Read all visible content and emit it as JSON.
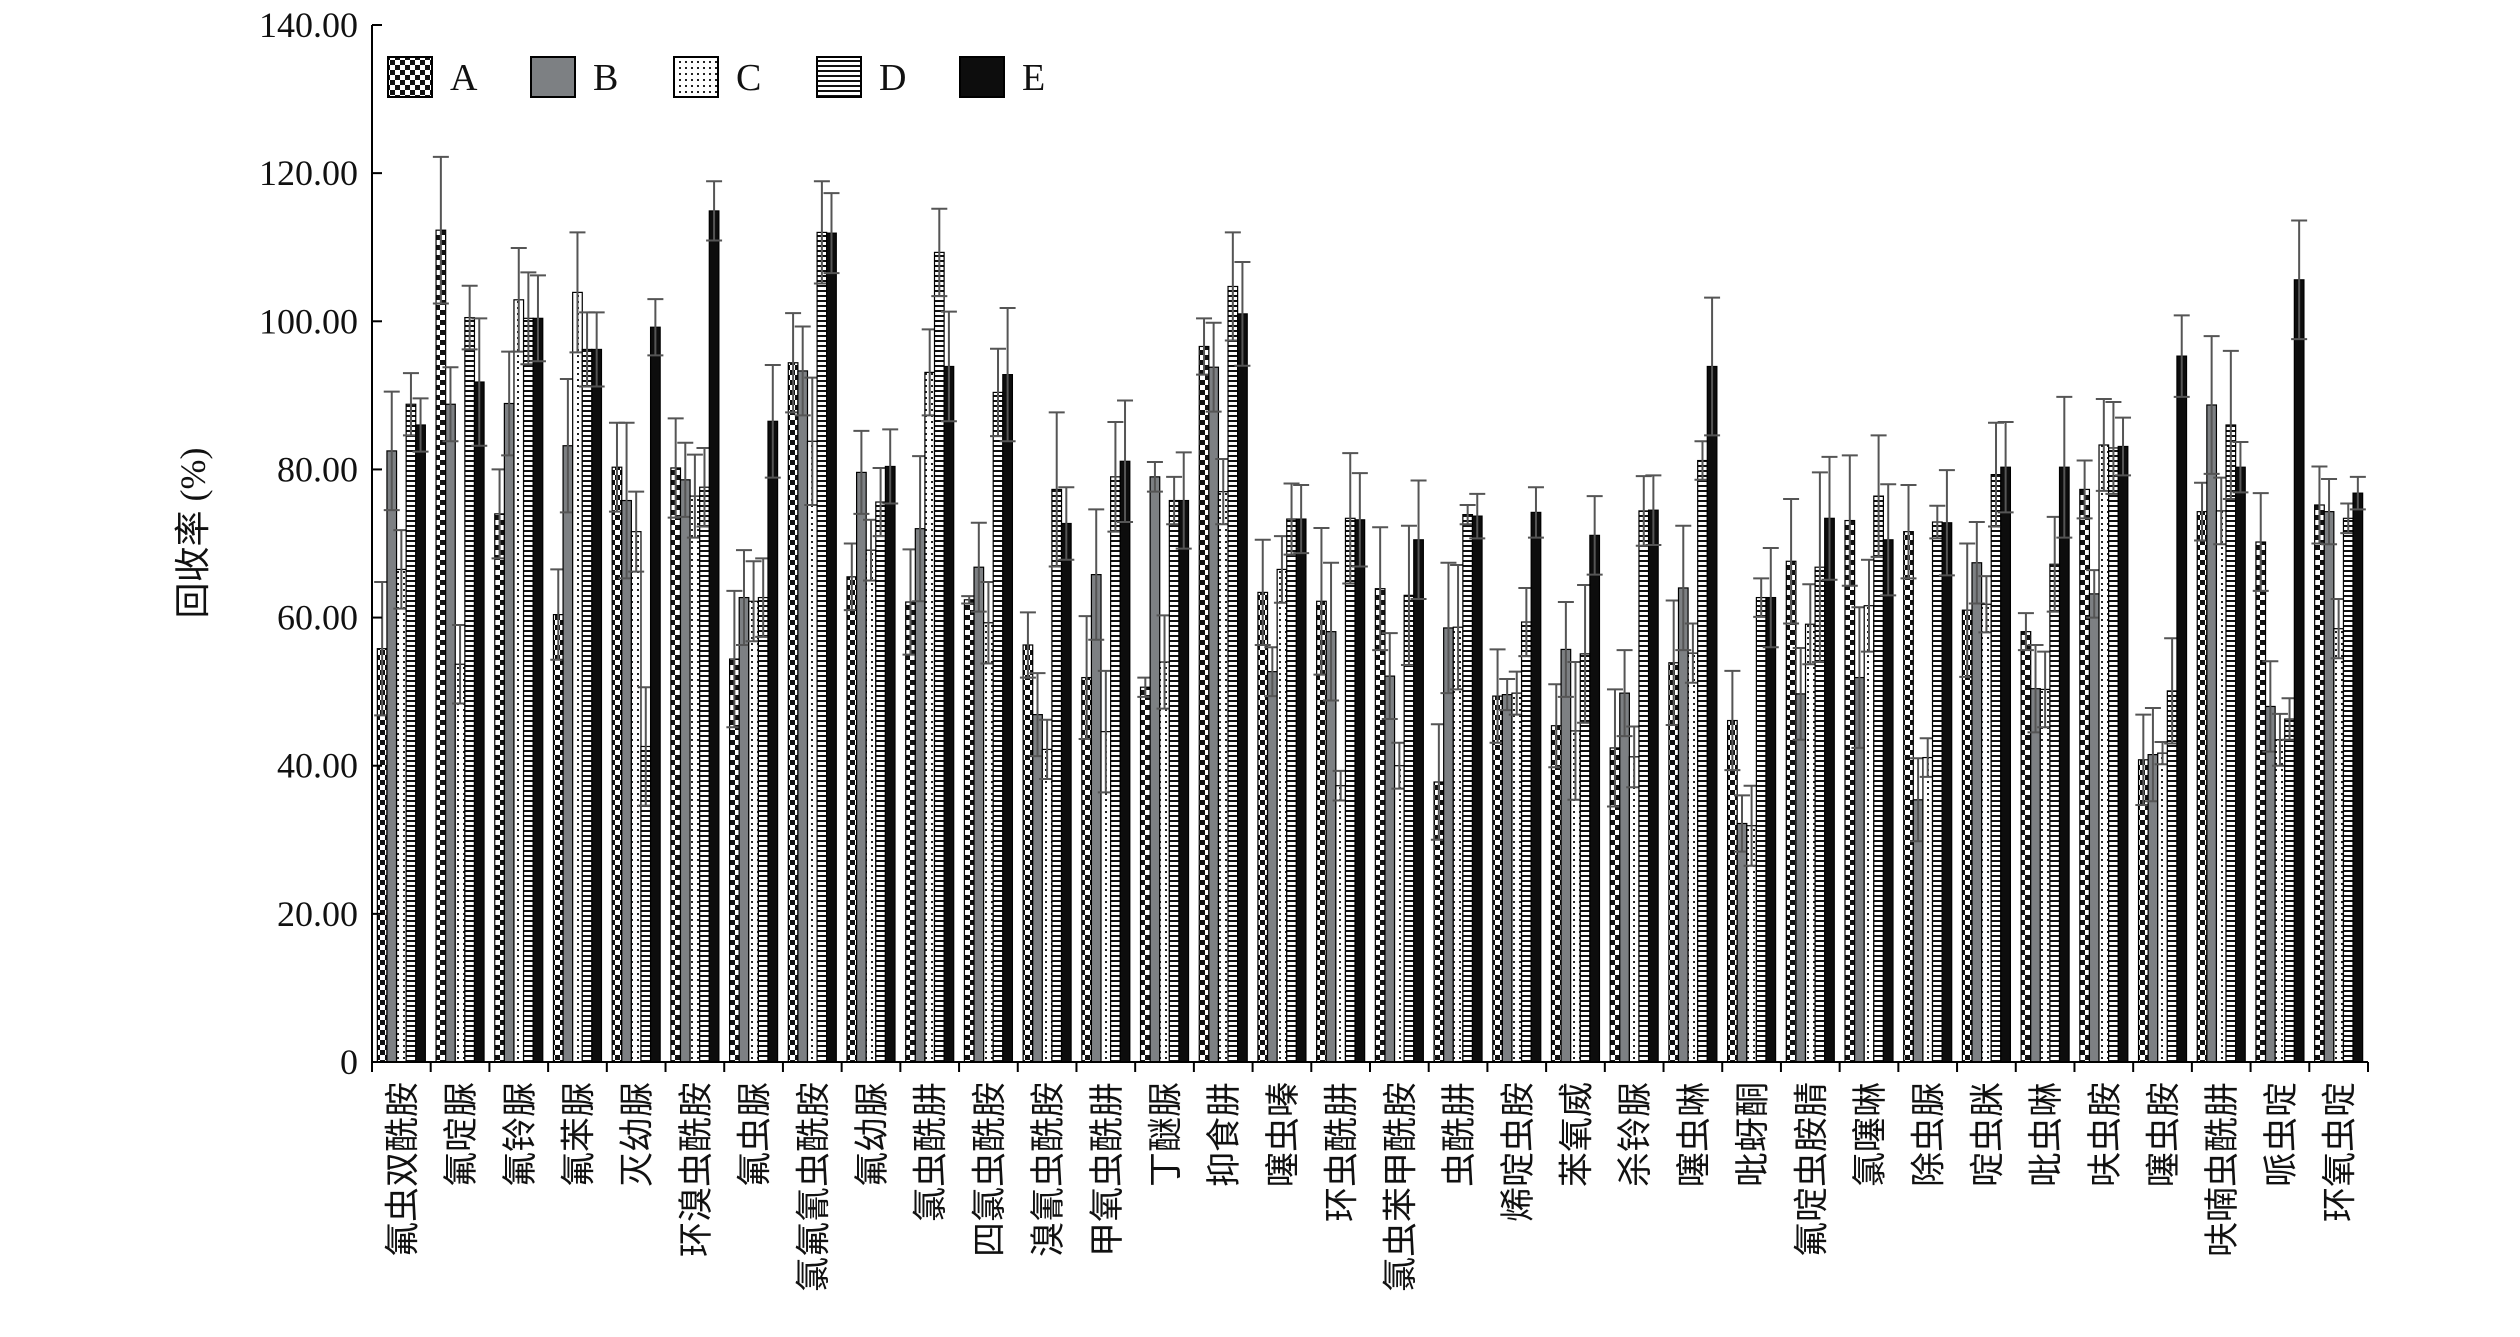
{
  "chart_data": {
    "type": "bar",
    "ylabel": "回收率 (%)",
    "ylim": [
      0,
      140
    ],
    "ytick_values": [
      0,
      20,
      40,
      60,
      80,
      100,
      120,
      140
    ],
    "ytick_labels": [
      "0",
      "20.00",
      "40.00",
      "60.00",
      "80.00",
      "100.00",
      "120.00",
      "140.00"
    ],
    "legend_position": "top-left",
    "categories": [
      "氟虫双酰胺",
      "氟啶脲",
      "氟铃脲",
      "氟苯脲",
      "灭幼脲",
      "环溴虫酰胺",
      "氟虫脲",
      "氯氟氰虫酰胺",
      "氟幼脲",
      "氯虫酰肼",
      "四氯虫酰胺",
      "溴氰虫酰胺",
      "甲氧虫酰肼",
      "丁醚脲",
      "抑食肼",
      "噻虫嗪",
      "环虫酰肼",
      "氯虫苯甲酰胺",
      "虫酰肼",
      "烯啶虫胺",
      "苯氧威",
      "杀铃脲",
      "噻虫啉",
      "吡蚜酮",
      "氟啶虫胺腈",
      "氯噻啉",
      "除虫脲",
      "啶虫脒",
      "吡虫啉",
      "呋虫胺",
      "噻虫胺",
      "呋喃虫酰肼",
      "哌虫啶",
      "环氧虫啶"
    ],
    "series": [
      {
        "name": "A",
        "pattern": "checker",
        "values": [
          55.8,
          112.3,
          74.0,
          60.4,
          80.3,
          80.2,
          54.4,
          94.4,
          65.5,
          62.1,
          62.4,
          56.3,
          51.9,
          50.6,
          96.6,
          63.4,
          62.2,
          63.9,
          37.8,
          49.4,
          45.4,
          42.4,
          53.9,
          46.1,
          67.6,
          73.1,
          71.6,
          61.0,
          58.1,
          77.3,
          40.8,
          74.3,
          70.2,
          75.2
        ]
      },
      {
        "name": "B",
        "pattern": "gray",
        "values": [
          82.5,
          88.8,
          88.9,
          83.2,
          75.8,
          78.6,
          62.7,
          93.3,
          79.6,
          72.0,
          66.8,
          46.9,
          65.8,
          79.0,
          93.8,
          52.7,
          58.1,
          52.1,
          58.6,
          49.6,
          55.7,
          49.8,
          64.0,
          32.2,
          49.7,
          51.9,
          35.4,
          67.4,
          50.4,
          63.2,
          41.5,
          88.7,
          48.0,
          74.3
        ]
      },
      {
        "name": "C",
        "pattern": "dotted",
        "values": [
          66.5,
          53.7,
          102.9,
          103.9,
          71.6,
          76.4,
          62.2,
          83.8,
          69.1,
          93.1,
          59.3,
          42.2,
          44.6,
          54.0,
          77.0,
          66.5,
          37.3,
          40.0,
          58.7,
          49.8,
          44.7,
          41.2,
          55.2,
          31.9,
          59.1,
          61.6,
          41.1,
          61.8,
          50.3,
          83.3,
          41.7,
          74.4,
          43.5,
          58.5
        ]
      },
      {
        "name": "D",
        "pattern": "hlines",
        "values": [
          88.8,
          100.5,
          100.4,
          96.2,
          42.6,
          77.6,
          62.7,
          112.0,
          75.6,
          109.3,
          90.4,
          77.3,
          79.0,
          75.8,
          104.7,
          73.3,
          73.4,
          63.0,
          73.9,
          59.4,
          55.1,
          74.4,
          81.2,
          62.7,
          66.8,
          76.4,
          72.9,
          79.3,
          67.2,
          82.9,
          50.1,
          86.0,
          46.3,
          73.4
        ]
      },
      {
        "name": "E",
        "pattern": "solid",
        "values": [
          86.0,
          91.8,
          100.4,
          96.2,
          99.2,
          114.9,
          86.5,
          111.9,
          80.4,
          93.9,
          92.8,
          72.7,
          81.1,
          75.8,
          101.0,
          73.3,
          73.2,
          70.5,
          73.7,
          74.2,
          71.1,
          74.5,
          93.9,
          62.7,
          73.4,
          70.5,
          72.8,
          80.3,
          80.3,
          83.1,
          95.3,
          80.3,
          105.6,
          76.8
        ]
      }
    ],
    "errors": [
      {
        "name": "A",
        "values": [
          9.0,
          9.9,
          6.0,
          6.1,
          6.0,
          6.7,
          9.2,
          6.7,
          4.5,
          7.1,
          0.5,
          4.4,
          8.3,
          1.3,
          3.8,
          7.1,
          9.9,
          8.3,
          7.8,
          6.3,
          5.6,
          7.9,
          8.4,
          6.7,
          8.4,
          8.8,
          6.3,
          9.0,
          2.5,
          3.9,
          6.1,
          3.9,
          6.6,
          5.2
        ]
      },
      {
        "name": "B",
        "values": [
          8.0,
          5.0,
          7.0,
          9.0,
          10.5,
          5.0,
          6.4,
          6.0,
          5.6,
          9.8,
          6.0,
          5.6,
          8.8,
          2.0,
          6.0,
          3.3,
          9.3,
          5.8,
          8.8,
          2.1,
          6.4,
          5.8,
          8.4,
          3.8,
          6.2,
          9.5,
          5.6,
          5.5,
          5.9,
          3.2,
          6.3,
          9.3,
          6.1,
          4.4
        ]
      },
      {
        "name": "C",
        "values": [
          5.3,
          5.3,
          7.0,
          8.1,
          5.4,
          5.6,
          5.4,
          8.6,
          4.1,
          5.8,
          5.5,
          4.0,
          8.2,
          6.3,
          4.4,
          4.5,
          2.0,
          3.1,
          8.4,
          2.9,
          9.3,
          4.1,
          4.0,
          5.4,
          5.4,
          6.2,
          2.6,
          3.8,
          5.1,
          6.2,
          1.5,
          4.5,
          3.5,
          4.0
        ]
      },
      {
        "name": "D",
        "values": [
          4.2,
          4.3,
          6.2,
          5.0,
          8.0,
          5.3,
          5.3,
          6.9,
          4.6,
          5.9,
          5.9,
          10.4,
          7.4,
          3.2,
          7.3,
          4.8,
          8.8,
          9.4,
          1.3,
          4.6,
          9.3,
          4.7,
          2.6,
          2.6,
          12.8,
          8.2,
          2.2,
          7.0,
          6.4,
          6.2,
          7.1,
          10.0,
          2.8,
          2.0
        ]
      },
      {
        "name": "E",
        "values": [
          3.6,
          8.6,
          5.8,
          5.0,
          3.8,
          4.0,
          7.6,
          5.4,
          5.0,
          7.4,
          9.0,
          4.9,
          8.2,
          6.5,
          7.0,
          4.6,
          6.3,
          8.0,
          3.0,
          3.4,
          5.3,
          4.7,
          9.3,
          6.7,
          8.3,
          7.5,
          7.1,
          6.1,
          9.5,
          3.9,
          5.5,
          3.4,
          8.0,
          2.2
        ]
      }
    ]
  }
}
